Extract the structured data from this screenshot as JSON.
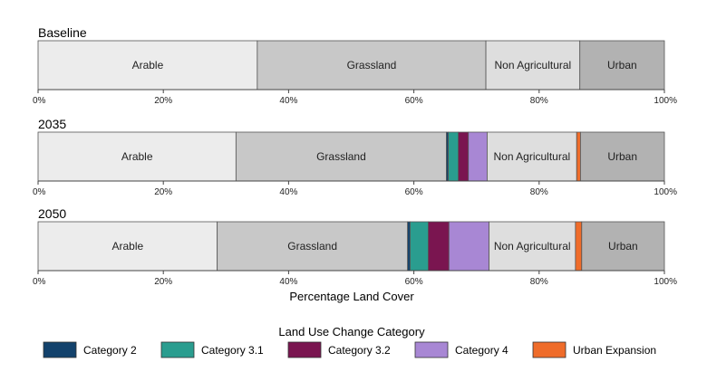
{
  "chart_data": {
    "type": "bar",
    "orientation": "horizontal",
    "stacked": true,
    "panels": [
      {
        "title": "Baseline",
        "segments": [
          {
            "category": "Arable",
            "value": 35,
            "label": "Arable"
          },
          {
            "category": "Grassland",
            "value": 36.5,
            "label": "Grassland"
          },
          {
            "category": "Non Agricultural",
            "value": 15,
            "label": "Non Agricultural"
          },
          {
            "category": "Urban",
            "value": 13.5,
            "label": "Urban"
          }
        ]
      },
      {
        "title": "2035",
        "segments": [
          {
            "category": "Arable",
            "value": 31.6,
            "label": "Arable"
          },
          {
            "category": "Grassland",
            "value": 33.6,
            "label": "Grassland"
          },
          {
            "category": "Category 2",
            "value": 0.3,
            "label": ""
          },
          {
            "category": "Category 3.1",
            "value": 1.6,
            "label": ""
          },
          {
            "category": "Category 3.2",
            "value": 1.6,
            "label": ""
          },
          {
            "category": "Category 4",
            "value": 3.0,
            "label": ""
          },
          {
            "category": "Non Agricultural",
            "value": 14.3,
            "label": "Non Agricultural"
          },
          {
            "category": "Urban Expansion",
            "value": 0.6,
            "label": ""
          },
          {
            "category": "Urban",
            "value": 13.4,
            "label": "Urban"
          }
        ]
      },
      {
        "title": "2050",
        "segments": [
          {
            "category": "Arable",
            "value": 28.6,
            "label": "Arable"
          },
          {
            "category": "Grassland",
            "value": 30.4,
            "label": "Grassland"
          },
          {
            "category": "Category 2",
            "value": 0.4,
            "label": ""
          },
          {
            "category": "Category 3.1",
            "value": 2.9,
            "label": ""
          },
          {
            "category": "Category 3.2",
            "value": 3.3,
            "label": ""
          },
          {
            "category": "Category 4",
            "value": 6.4,
            "label": ""
          },
          {
            "category": "Non Agricultural",
            "value": 13.8,
            "label": "Non Agricultural"
          },
          {
            "category": "Urban Expansion",
            "value": 1.0,
            "label": ""
          },
          {
            "category": "Urban",
            "value": 13.2,
            "label": "Urban"
          }
        ]
      }
    ],
    "x_ticks": [
      "0%",
      "20%",
      "40%",
      "60%",
      "80%",
      "100%"
    ],
    "xlim": [
      0,
      100
    ],
    "xlabel": "Percentage Land Cover",
    "legend": {
      "title": "Land Use Change Category",
      "position": "bottom",
      "entries": [
        "Category 2",
        "Category 3.1",
        "Category 3.2",
        "Category 4",
        "Urban Expansion"
      ]
    },
    "colors": {
      "Arable": "#ececec",
      "Grassland": "#c8c8c8",
      "Non Agricultural": "#dedede",
      "Urban": "#b2b2b2",
      "Category 2": "#13426c",
      "Category 3.1": "#2a9d8f",
      "Category 3.2": "#7a1550",
      "Category 4": "#a887d4",
      "Urban Expansion": "#ef6c2a"
    }
  }
}
